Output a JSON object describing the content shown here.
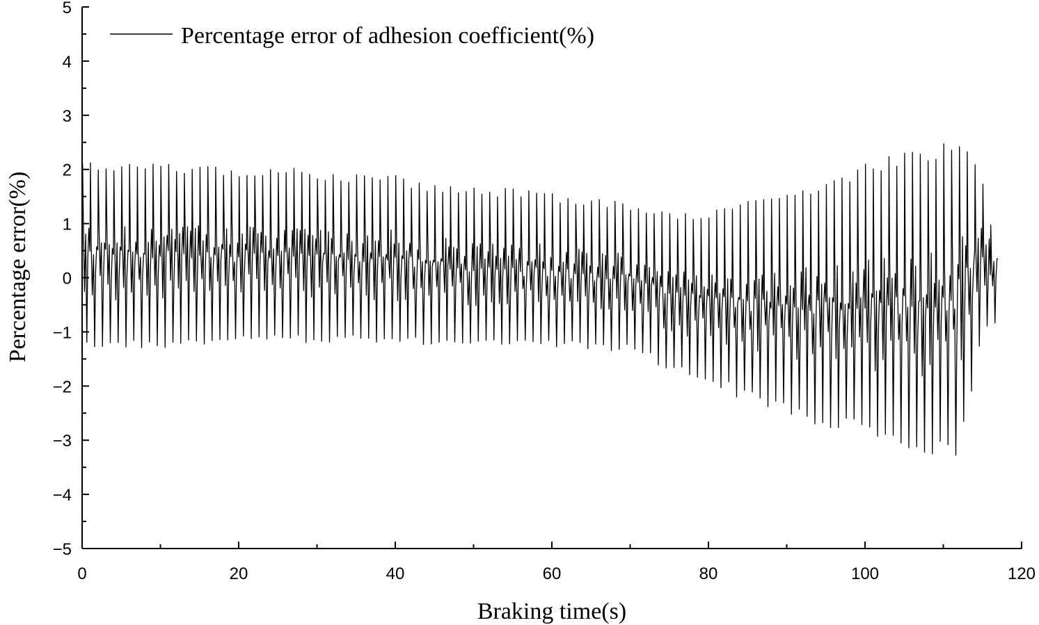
{
  "chart_data": {
    "type": "line",
    "title": "",
    "xlabel": "Braking time(s)",
    "ylabel": "Percentage error(%)",
    "xlim": [
      0,
      120
    ],
    "ylim": [
      -5,
      5
    ],
    "xticks": [
      0,
      20,
      40,
      60,
      80,
      100,
      120
    ],
    "yticks": [
      -5,
      -4,
      -3,
      -2,
      -1,
      0,
      1,
      2,
      3,
      4,
      5
    ],
    "xtick_labels": [
      "0",
      "20",
      "40",
      "60",
      "80",
      "100",
      "120"
    ],
    "ytick_labels": [
      "−5",
      "−4",
      "−3",
      "−2",
      "−1",
      "0",
      "1",
      "2",
      "3",
      "4",
      "5"
    ],
    "grid": false,
    "legend_position": "top-left",
    "series": [
      {
        "name": "Percentage error of adhesion coefficient(%)",
        "color": "#000000",
        "x_range": [
          0,
          117
        ],
        "oscillation_period_s": 1,
        "envelope": {
          "t": [
            0,
            10,
            20,
            30,
            40,
            50,
            60,
            70,
            75,
            80,
            85,
            90,
            95,
            100,
            105,
            110,
            112,
            115,
            117
          ],
          "upper": [
            2.2,
            2.2,
            2.1,
            2.0,
            1.9,
            1.7,
            1.6,
            1.4,
            1.2,
            1.2,
            1.4,
            1.6,
            1.8,
            2.1,
            2.3,
            2.5,
            2.7,
            2.1,
            0.7
          ],
          "lower": [
            -1.3,
            -1.3,
            -1.2,
            -1.2,
            -1.2,
            -1.3,
            -1.3,
            -1.4,
            -1.7,
            -2.0,
            -2.3,
            -2.6,
            -2.8,
            -3.0,
            -3.2,
            -3.4,
            -3.3,
            -1.0,
            -0.9
          ]
        }
      }
    ]
  }
}
